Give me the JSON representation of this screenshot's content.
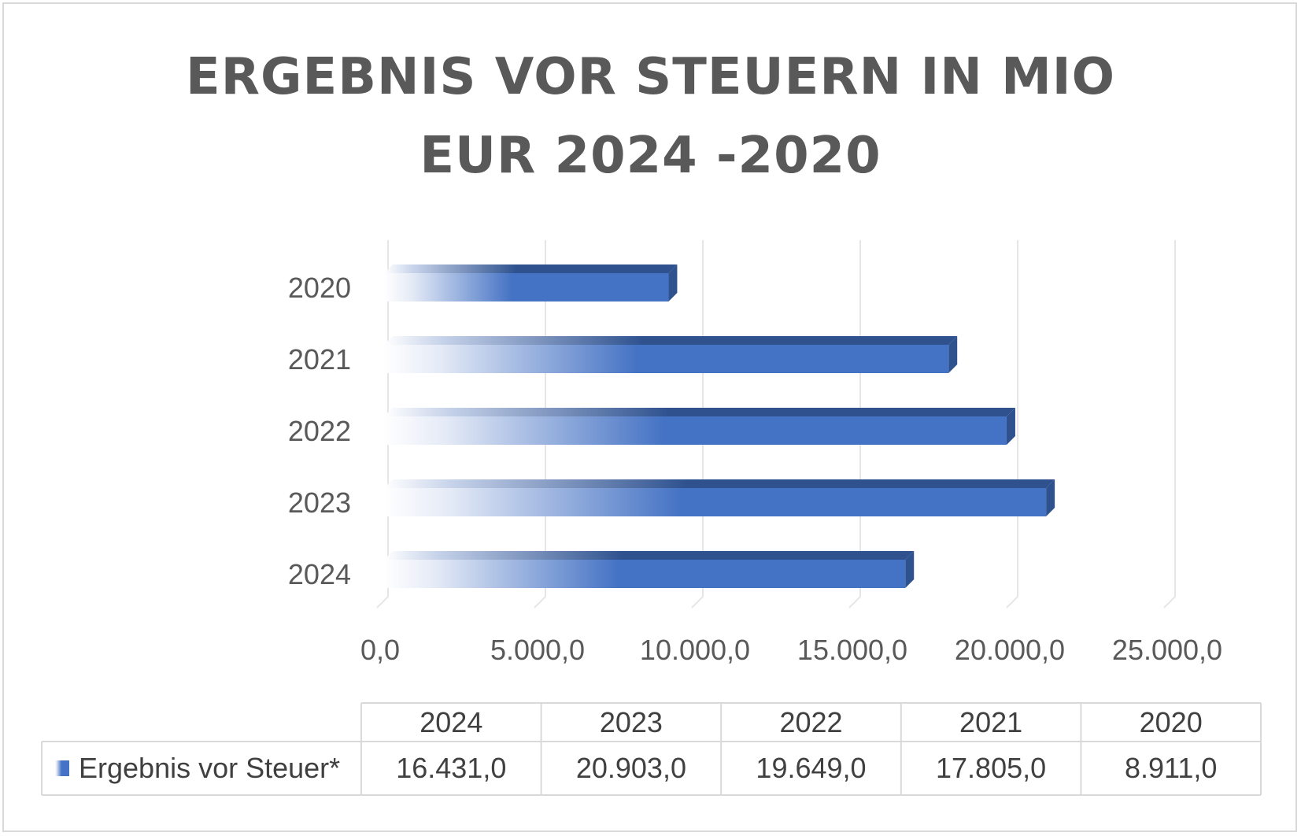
{
  "chart_data": {
    "type": "bar",
    "orientation": "horizontal",
    "title_lines": [
      "ERGEBNIS VOR STEUERN IN MIO",
      "EUR 2024 -2020"
    ],
    "categories": [
      "2024",
      "2023",
      "2022",
      "2021",
      "2020"
    ],
    "series": [
      {
        "name": "Ergebnis vor Steuer*",
        "values": [
          16431.0,
          20903.0,
          19649.0,
          17805.0,
          8911.0
        ]
      }
    ],
    "x_ticks": [
      "0,0",
      "5.000,0",
      "10.000,0",
      "15.000,0",
      "20.000,0",
      "25.000,0"
    ],
    "xlim": [
      0,
      25000
    ],
    "grid": true,
    "data_table": {
      "headers": [
        "2024",
        "2023",
        "2022",
        "2021",
        "2020"
      ],
      "row_label": "Ergebnis vor Steuer*",
      "cells": [
        "16.431,0",
        "20.903,0",
        "19.649,0",
        "17.805,0",
        "8.911,0"
      ]
    },
    "colors": {
      "bar": "#4472c4",
      "bar_dark": "#2f528f",
      "grid": "#e6e6e6",
      "text": "#595959"
    }
  }
}
